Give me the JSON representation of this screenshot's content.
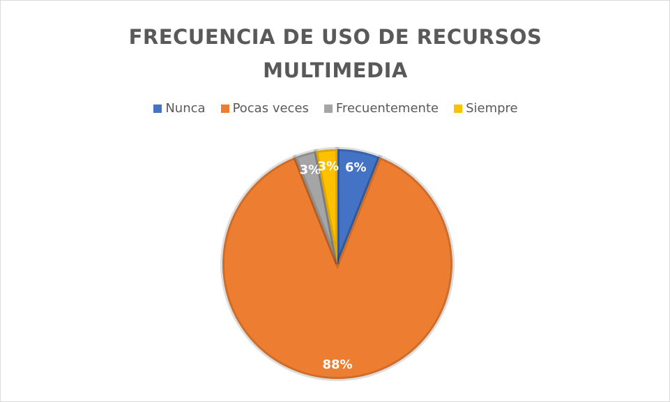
{
  "chart_data": {
    "type": "pie",
    "title": "FRECUENCIA DE USO DE RECURSOS MULTIMEDIA",
    "categories": [
      "Nunca",
      "Pocas veces",
      "Frecuentemente",
      "Siempre"
    ],
    "values": [
      6,
      88,
      3,
      3
    ],
    "value_labels": [
      "6%",
      "88%",
      "3%",
      "3%"
    ],
    "colors": [
      "#4472c4",
      "#ed7d31",
      "#a5a5a5",
      "#ffc000"
    ],
    "legend": "top"
  }
}
